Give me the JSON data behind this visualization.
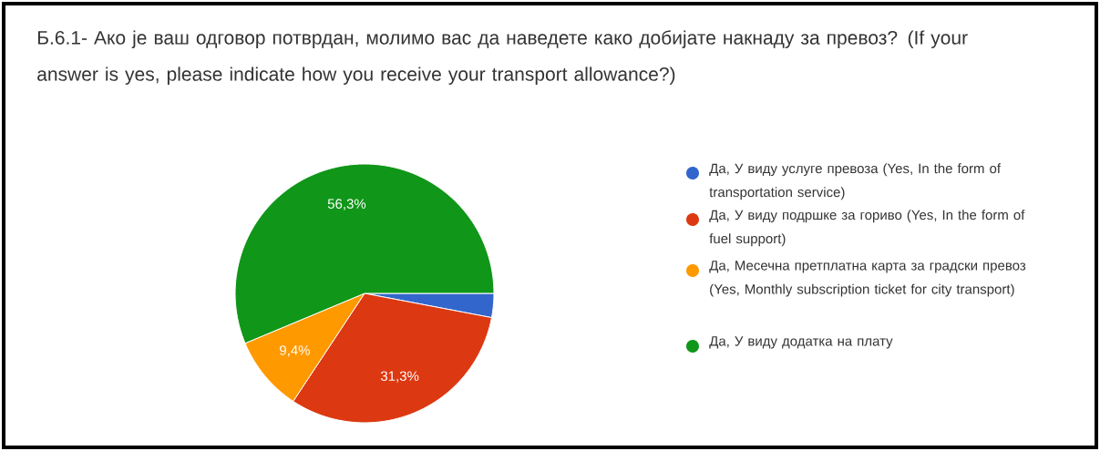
{
  "chart_data": {
    "type": "pie",
    "title": "Б.6.1-   Ако је ваш одговор потврдан, молимо вас да наведете како добијате накнаду за превоз? (If your answer is yes, please indicate how you receive your transport allowance?)",
    "categories": [
      "Да, У виду услуге превоза (Yes, In the form of transportation service)",
      "Да, У виду подршке за гориво (Yes, In the form of fuel support)",
      "Да, Месечна претплатна карта за градски превоз (Yes, Monthly subscription ticket for city transport)",
      "Да, У виду додатка на плату"
    ],
    "values": [
      3.0,
      31.3,
      9.4,
      56.3
    ],
    "colors": [
      "#3366cc",
      "#dc3912",
      "#ff9900",
      "#109618"
    ],
    "value_labels": [
      null,
      "31,3%",
      "9,4%",
      "56,3%"
    ],
    "legend": "right"
  }
}
